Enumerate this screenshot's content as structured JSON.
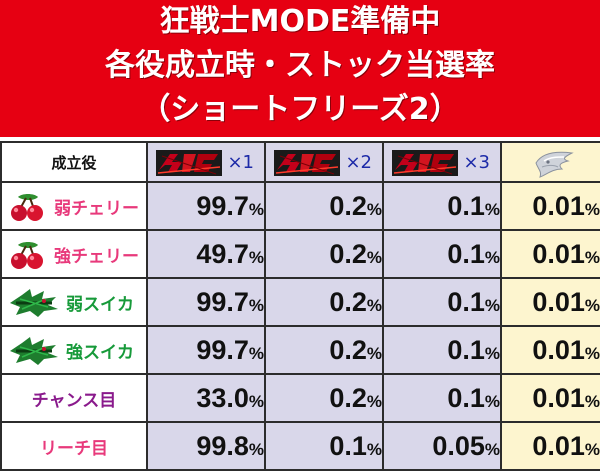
{
  "header": {
    "line1": "狂戦士MODE準備中",
    "line2": "各役成立時・ストック当選率",
    "line3": "（ショートフリーズ2）"
  },
  "table": {
    "role_header": "成立役",
    "columns": [
      {
        "icon": "berserk-logo-icon",
        "label": "×1"
      },
      {
        "icon": "berserk-logo-icon",
        "label": "×2"
      },
      {
        "icon": "berserk-logo-icon",
        "label": "×3"
      },
      {
        "icon": "silver-eagle-emblem-icon",
        "label": ""
      }
    ],
    "rows": [
      {
        "icon": "cherry-icon",
        "label": "弱チェリー",
        "color": "#e8397b",
        "values": [
          {
            "n": "99.7",
            "u": "%"
          },
          {
            "n": "0.2",
            "u": "%"
          },
          {
            "n": "0.1",
            "u": "%"
          },
          {
            "n": "0.01",
            "u": "%"
          }
        ]
      },
      {
        "icon": "cherry-icon",
        "label": "強チェリー",
        "color": "#e8397b",
        "values": [
          {
            "n": "49.7",
            "u": "%"
          },
          {
            "n": "0.2",
            "u": "%"
          },
          {
            "n": "0.1",
            "u": "%"
          },
          {
            "n": "0.01",
            "u": "%"
          }
        ]
      },
      {
        "icon": "watermelon-icon",
        "label": "弱スイカ",
        "color": "#179a3a",
        "values": [
          {
            "n": "99.7",
            "u": "%"
          },
          {
            "n": "0.2",
            "u": "%"
          },
          {
            "n": "0.1",
            "u": "%"
          },
          {
            "n": "0.01",
            "u": "%"
          }
        ]
      },
      {
        "icon": "watermelon-icon",
        "label": "強スイカ",
        "color": "#179a3a",
        "values": [
          {
            "n": "99.7",
            "u": "%"
          },
          {
            "n": "0.2",
            "u": "%"
          },
          {
            "n": "0.1",
            "u": "%"
          },
          {
            "n": "0.01",
            "u": "%"
          }
        ]
      },
      {
        "icon": "",
        "label": "チャンス目",
        "color": "#8a1a8c",
        "values": [
          {
            "n": "33.0",
            "u": "%"
          },
          {
            "n": "0.2",
            "u": "%"
          },
          {
            "n": "0.1",
            "u": "%"
          },
          {
            "n": "0.01",
            "u": "%"
          }
        ]
      },
      {
        "icon": "",
        "label": "リーチ目",
        "color": "#e8397b",
        "values": [
          {
            "n": "99.8",
            "u": "%"
          },
          {
            "n": "0.1",
            "u": "%"
          },
          {
            "n": "0.05",
            "u": "%"
          },
          {
            "n": "0.01",
            "u": "%"
          }
        ]
      }
    ]
  },
  "colors": {
    "header_bg": "#e60012",
    "mult_col_bg": "#d9d7ea",
    "gold_col_bg": "#fdf5cf",
    "mult_label": "#1d2aa8"
  }
}
